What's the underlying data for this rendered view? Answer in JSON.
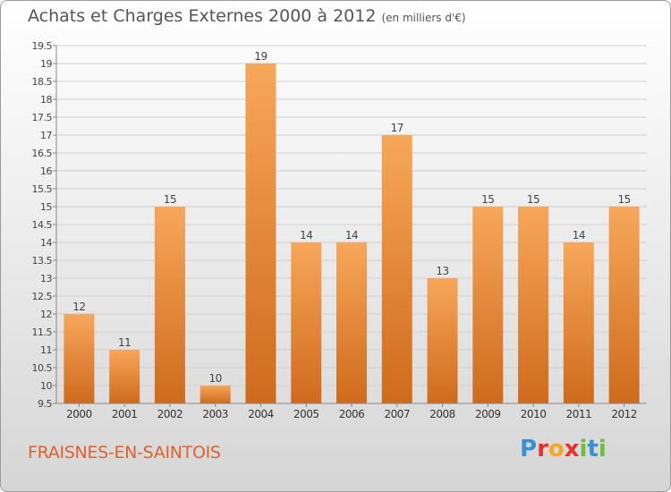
{
  "header": {
    "title": "Achats et Charges Externes 2000 à 2012",
    "unit_note": "(en milliers d'€)"
  },
  "footer": {
    "place": "FRAISNES-EN-SAINTOIS",
    "logo_letters": [
      "P",
      "r",
      "o",
      "x",
      "i",
      "t",
      "i"
    ],
    "logo_colors": [
      "#3a8fd6",
      "#e8312b",
      "#f5a623",
      "#e8312b",
      "#6fbf3c",
      "#3a8fd6",
      "#6fbf3c"
    ]
  },
  "chart_data": {
    "type": "bar",
    "title": "Achats et Charges Externes 2000 à 2012",
    "categories": [
      "2000",
      "2001",
      "2002",
      "2003",
      "2004",
      "2005",
      "2006",
      "2007",
      "2008",
      "2009",
      "2010",
      "2011",
      "2012"
    ],
    "values": [
      12,
      11,
      15,
      10,
      19,
      14,
      14,
      17,
      13,
      15,
      15,
      14,
      15
    ],
    "xlabel": "",
    "ylabel": "",
    "ylim": [
      9.5,
      19.5
    ],
    "yticks": [
      "9.5",
      "10",
      "10.5",
      "11",
      "11.5",
      "12",
      "12.5",
      "13",
      "13.5",
      "14",
      "14.5",
      "15",
      "15.5",
      "16",
      "16.5",
      "17",
      "17.5",
      "18",
      "18.5",
      "19",
      "19.5"
    ],
    "grid": true,
    "legend": "none",
    "bar_color_top": "#f7a75a",
    "bar_color_bottom": "#cf6a1b"
  }
}
